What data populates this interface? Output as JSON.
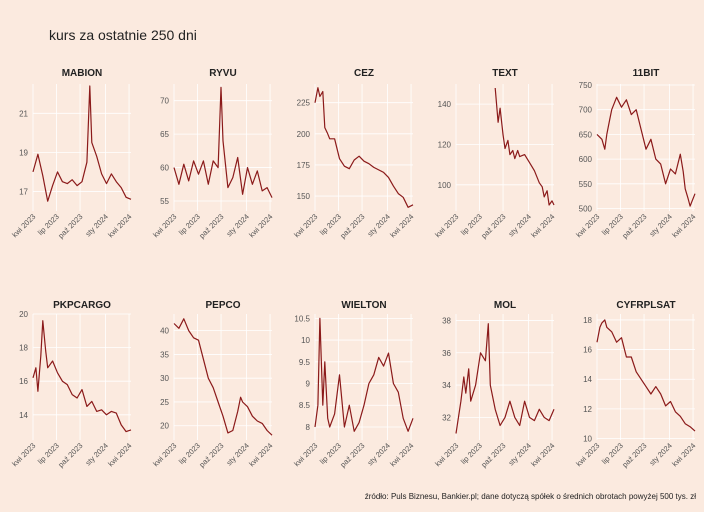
{
  "title": "kurs za ostatnie 250 dni",
  "caption": "źródło: Puls Biznesu, Bankier.pl; dane dotyczą spółek o średnich obrotach powyżej 500 tys. zł",
  "line_color": "#8b1a1a",
  "background_color": "#fbeadf",
  "grid_color": "#ffffff",
  "x_tick_labels": [
    "kwi 2023",
    "lip 2023",
    "paź 2023",
    "sty 2024",
    "kwi 2024"
  ],
  "chart_data": [
    {
      "type": "line",
      "title": "MABION",
      "ylim": [
        16.0,
        22.5
      ],
      "yticks": [
        17,
        19,
        21
      ],
      "x_range": [
        0,
        1
      ],
      "x": [
        0.0,
        0.05,
        0.1,
        0.15,
        0.2,
        0.25,
        0.3,
        0.35,
        0.4,
        0.45,
        0.5,
        0.55,
        0.58,
        0.6,
        0.65,
        0.7,
        0.75,
        0.8,
        0.85,
        0.9,
        0.95,
        1.0
      ],
      "values": [
        18.0,
        18.9,
        17.8,
        16.5,
        17.3,
        18.0,
        17.5,
        17.4,
        17.6,
        17.3,
        17.5,
        18.5,
        22.4,
        19.5,
        18.8,
        17.9,
        17.4,
        17.9,
        17.5,
        17.2,
        16.7,
        16.6
      ]
    },
    {
      "type": "line",
      "title": "RYVU",
      "ylim": [
        53.5,
        72.5
      ],
      "yticks": [
        55,
        60,
        65,
        70
      ],
      "x_range": [
        0,
        1
      ],
      "x": [
        0.0,
        0.05,
        0.1,
        0.15,
        0.2,
        0.25,
        0.3,
        0.35,
        0.4,
        0.45,
        0.48,
        0.5,
        0.55,
        0.6,
        0.65,
        0.7,
        0.75,
        0.8,
        0.85,
        0.9,
        0.95,
        1.0
      ],
      "values": [
        60.0,
        57.5,
        60.5,
        58.0,
        61.0,
        59.0,
        61.0,
        57.5,
        61.0,
        60.0,
        72.0,
        64.0,
        57.0,
        58.5,
        61.5,
        56.0,
        60.0,
        57.5,
        59.5,
        56.5,
        57.0,
        55.5
      ]
    },
    {
      "type": "line",
      "title": "CEZ",
      "ylim": [
        138,
        240
      ],
      "yticks": [
        150,
        175,
        200,
        225
      ],
      "x_range": [
        0,
        1
      ],
      "x": [
        0.0,
        0.03,
        0.05,
        0.08,
        0.1,
        0.13,
        0.15,
        0.2,
        0.25,
        0.3,
        0.35,
        0.4,
        0.45,
        0.5,
        0.55,
        0.6,
        0.65,
        0.7,
        0.75,
        0.8,
        0.85,
        0.9,
        0.95,
        1.0
      ],
      "values": [
        225,
        237,
        230,
        234,
        205,
        200,
        196,
        196,
        180,
        174,
        172,
        179,
        182,
        178,
        176,
        173,
        171,
        169,
        165,
        158,
        152,
        149,
        141,
        143
      ]
    },
    {
      "type": "line",
      "title": "TEXT",
      "ylim": [
        87,
        150
      ],
      "yticks": [
        100,
        120,
        140
      ],
      "x_range": [
        0,
        1
      ],
      "x": [
        0.4,
        0.43,
        0.45,
        0.48,
        0.5,
        0.53,
        0.55,
        0.58,
        0.6,
        0.63,
        0.65,
        0.7,
        0.75,
        0.8,
        0.85,
        0.88,
        0.9,
        0.93,
        0.95,
        0.98,
        1.0
      ],
      "values": [
        148,
        131,
        138,
        125,
        118,
        122,
        115,
        117,
        113,
        117,
        114,
        115,
        111,
        107,
        101,
        99,
        94,
        97,
        90,
        92,
        90
      ]
    },
    {
      "type": "line",
      "title": "11BIT",
      "ylim": [
        495,
        752
      ],
      "yticks": [
        500,
        550,
        600,
        650,
        700,
        750
      ],
      "x_range": [
        0,
        1
      ],
      "x": [
        0.0,
        0.05,
        0.08,
        0.1,
        0.13,
        0.15,
        0.2,
        0.25,
        0.3,
        0.35,
        0.4,
        0.45,
        0.5,
        0.55,
        0.6,
        0.65,
        0.7,
        0.75,
        0.8,
        0.85,
        0.88,
        0.9,
        0.93,
        0.95,
        1.0
      ],
      "values": [
        650,
        640,
        620,
        650,
        680,
        700,
        725,
        705,
        720,
        690,
        700,
        660,
        620,
        640,
        600,
        590,
        550,
        580,
        570,
        610,
        575,
        540,
        520,
        505,
        530
      ]
    },
    {
      "type": "line",
      "title": "PKPCARGO",
      "ylim": [
        12.5,
        20.0
      ],
      "yticks": [
        14,
        16,
        18,
        20
      ],
      "x_range": [
        0,
        1
      ],
      "x": [
        0.0,
        0.03,
        0.05,
        0.08,
        0.1,
        0.13,
        0.15,
        0.2,
        0.25,
        0.3,
        0.35,
        0.4,
        0.45,
        0.5,
        0.55,
        0.6,
        0.65,
        0.7,
        0.75,
        0.8,
        0.85,
        0.9,
        0.95,
        1.0
      ],
      "values": [
        16.2,
        16.8,
        15.4,
        17.5,
        19.6,
        17.8,
        16.8,
        17.2,
        16.5,
        16.0,
        15.8,
        15.2,
        15.0,
        15.5,
        14.5,
        14.8,
        14.2,
        14.3,
        14.0,
        14.2,
        14.1,
        13.4,
        13.0,
        13.1
      ]
    },
    {
      "type": "line",
      "title": "PEPCO",
      "ylim": [
        17,
        43.5
      ],
      "yticks": [
        20,
        25,
        30,
        35,
        40
      ],
      "x_range": [
        0,
        1
      ],
      "x": [
        0.0,
        0.05,
        0.1,
        0.15,
        0.2,
        0.25,
        0.3,
        0.35,
        0.4,
        0.45,
        0.5,
        0.55,
        0.6,
        0.65,
        0.68,
        0.7,
        0.75,
        0.8,
        0.85,
        0.9,
        0.95,
        1.0
      ],
      "values": [
        41.5,
        40.5,
        42.5,
        40.0,
        38.5,
        38.0,
        34.0,
        30.0,
        28.0,
        25.0,
        22.0,
        18.5,
        19.0,
        23.0,
        26.0,
        25.0,
        24.0,
        22.0,
        21.0,
        20.5,
        19.0,
        18.0
      ]
    },
    {
      "type": "line",
      "title": "WIELTON",
      "ylim": [
        7.7,
        10.6
      ],
      "yticks": [
        8.0,
        8.5,
        9.0,
        9.5,
        10.0,
        10.5
      ],
      "x_range": [
        0,
        1
      ],
      "x": [
        0.0,
        0.03,
        0.05,
        0.08,
        0.1,
        0.13,
        0.15,
        0.2,
        0.25,
        0.3,
        0.35,
        0.4,
        0.45,
        0.5,
        0.55,
        0.6,
        0.65,
        0.7,
        0.75,
        0.8,
        0.85,
        0.9,
        0.95,
        1.0
      ],
      "values": [
        8.0,
        8.5,
        10.5,
        8.5,
        9.5,
        8.2,
        8.0,
        8.3,
        9.2,
        8.0,
        8.5,
        7.9,
        8.1,
        8.5,
        9.0,
        9.2,
        9.6,
        9.4,
        9.7,
        9.0,
        8.8,
        8.2,
        7.9,
        8.2
      ]
    },
    {
      "type": "line",
      "title": "MOL",
      "ylim": [
        30.6,
        38.4
      ],
      "yticks": [
        32,
        34,
        36,
        38
      ],
      "x_range": [
        0,
        1
      ],
      "x": [
        0.0,
        0.05,
        0.08,
        0.1,
        0.13,
        0.15,
        0.2,
        0.25,
        0.3,
        0.33,
        0.35,
        0.4,
        0.45,
        0.5,
        0.55,
        0.6,
        0.65,
        0.7,
        0.75,
        0.8,
        0.85,
        0.9,
        0.95,
        1.0
      ],
      "values": [
        31.0,
        33.0,
        34.5,
        33.5,
        35.0,
        33.0,
        34.0,
        36.0,
        35.5,
        37.8,
        34.0,
        32.5,
        31.5,
        32.0,
        33.0,
        32.0,
        31.5,
        33.0,
        32.0,
        31.8,
        32.5,
        32.0,
        31.8,
        32.5
      ]
    },
    {
      "type": "line",
      "title": "CYFRPLSAT",
      "ylim": [
        9.9,
        18.4
      ],
      "yticks": [
        10,
        12,
        14,
        16,
        18
      ],
      "x_range": [
        0,
        1
      ],
      "x": [
        0.0,
        0.03,
        0.05,
        0.08,
        0.1,
        0.15,
        0.2,
        0.25,
        0.3,
        0.35,
        0.4,
        0.45,
        0.5,
        0.55,
        0.6,
        0.65,
        0.7,
        0.75,
        0.8,
        0.85,
        0.9,
        0.95,
        1.0
      ],
      "values": [
        16.5,
        17.5,
        17.8,
        18.0,
        17.5,
        17.2,
        16.5,
        16.8,
        15.5,
        15.5,
        14.5,
        14.0,
        13.5,
        13.0,
        13.5,
        13.0,
        12.2,
        12.5,
        11.8,
        11.5,
        11.0,
        10.8,
        10.5
      ]
    }
  ]
}
